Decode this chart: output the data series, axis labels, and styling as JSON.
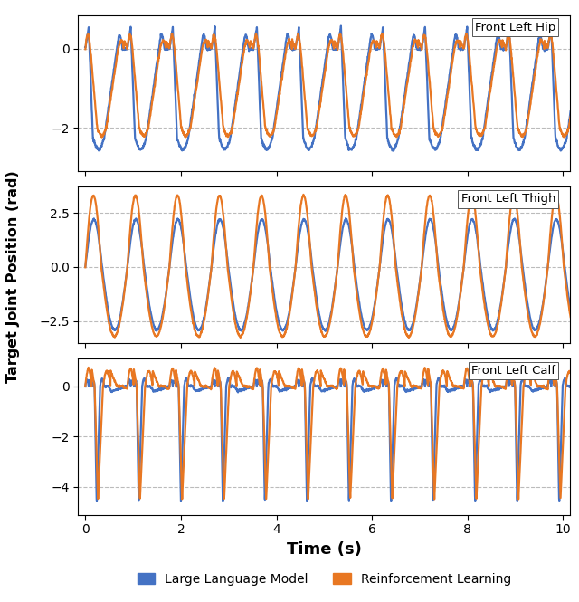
{
  "title": "",
  "ylabel": "Target Joint Position (rad)",
  "xlabel": "Time (s)",
  "xlim": [
    -0.15,
    10.15
  ],
  "subplot_titles": [
    "Front Left Hip",
    "Front Left Thigh",
    "Front Left Calf"
  ],
  "color_llm": "#4472C4",
  "color_rl": "#E87722",
  "legend_llm": "Large Language Model",
  "legend_rl": "Reinforcement Learning",
  "grid_color": "#bbbbbb",
  "linewidth": 1.6,
  "xticks": [
    0,
    2,
    4,
    6,
    8,
    10
  ],
  "hip_ylim": [
    -3.1,
    0.85
  ],
  "thigh_ylim": [
    -3.5,
    3.7
  ],
  "calf_ylim": [
    -5.1,
    1.1
  ],
  "hip_yticks": [
    0,
    -2
  ],
  "thigh_yticks": [
    2.5,
    0.0,
    -2.5
  ],
  "calf_yticks": [
    0,
    -2,
    -4
  ],
  "period_llm": 0.88,
  "period_rl": 0.88,
  "duration": 10.3,
  "dt": 0.005
}
